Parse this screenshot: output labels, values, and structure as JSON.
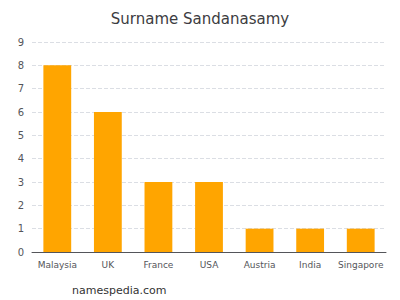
{
  "chart_data": {
    "type": "bar",
    "title": "Surname Sandanasamy",
    "categories": [
      "Malaysia",
      "UK",
      "France",
      "USA",
      "Austria",
      "India",
      "Singapore"
    ],
    "values": [
      8,
      6,
      3,
      3,
      1,
      1,
      1
    ],
    "color": "#FFA500",
    "ylim": [
      0,
      9
    ],
    "yticks": [
      0,
      1,
      2,
      3,
      4,
      5,
      6,
      7,
      8,
      9
    ],
    "grid": true,
    "annotations": [
      "namespedia.com"
    ]
  }
}
